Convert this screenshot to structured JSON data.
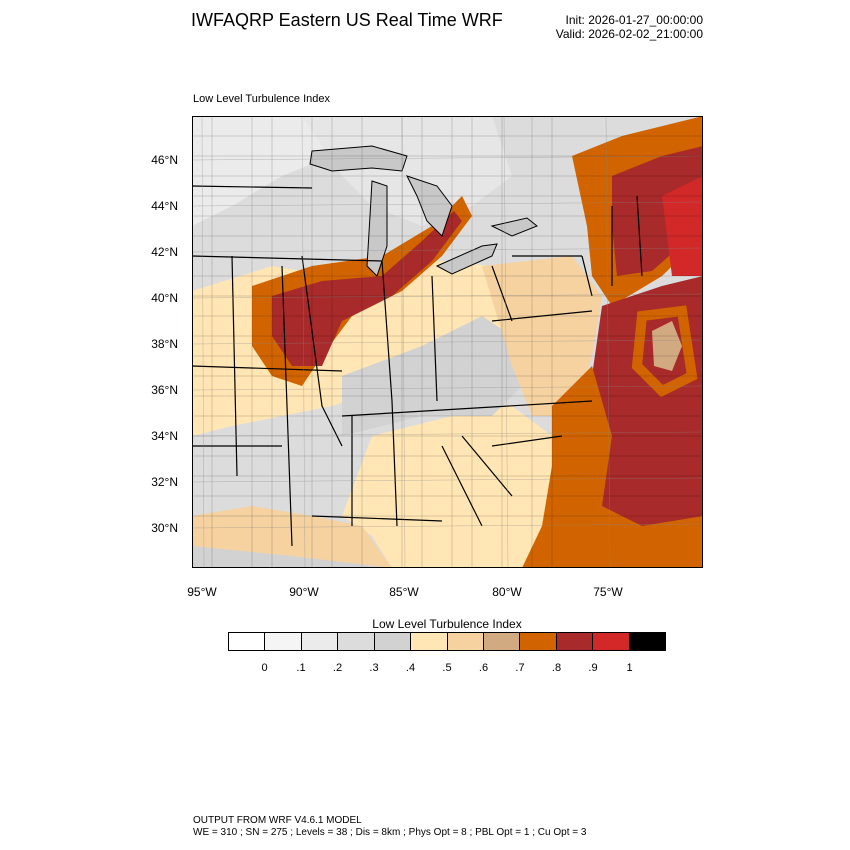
{
  "header": {
    "title": "IWFAQRP Eastern US Real Time WRF",
    "init": "Init: 2026-01-27_00:00:00",
    "valid": "Valid: 2026-02-02_21:00:00"
  },
  "map": {
    "subtitle": "Low Level Turbulence Index",
    "lat_labels": [
      "46°N",
      "44°N",
      "42°N",
      "40°N",
      "38°N",
      "36°N",
      "34°N",
      "32°N",
      "30°N"
    ],
    "lon_labels": [
      "95°W",
      "90°W",
      "85°W",
      "80°W",
      "75°W"
    ],
    "ocean_color": "#a82a2a",
    "land_base_color": "#d8d8d8"
  },
  "colorbar": {
    "title": "Low Level Turbulence Index",
    "colors": [
      "#ffffff",
      "#f5f5f5",
      "#ebebeb",
      "#dcdcdc",
      "#d2d2d2",
      "#ffe6b4",
      "#f5d2a0",
      "#d2aa82",
      "#d26400",
      "#a82a2a",
      "#d22828",
      "#000000"
    ],
    "ticks": [
      "0",
      ".1",
      ".2",
      ".3",
      ".4",
      ".5",
      ".6",
      ".7",
      ".8",
      ".9",
      "1"
    ]
  },
  "footer": {
    "line1": "OUTPUT FROM WRF V4.6.1 MODEL",
    "line2": "WE = 310 ; SN = 275 ; Levels = 38 ; Dis = 8km ; Phys Opt = 8 ; PBL Opt = 1 ; Cu Opt = 3"
  }
}
